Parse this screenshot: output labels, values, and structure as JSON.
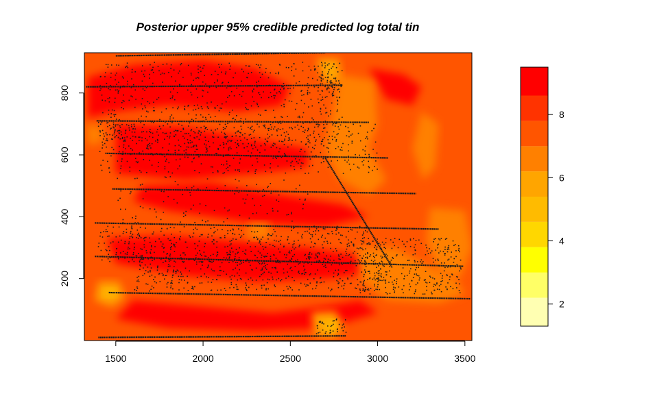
{
  "chart_data": {
    "type": "heatmap",
    "title": "Posterior upper 95% credible predicted log total tin",
    "xlabel": "",
    "ylabel": "",
    "xlim": [
      1320,
      3540
    ],
    "ylim": [
      0,
      930
    ],
    "x_ticks": [
      1500,
      2000,
      2500,
      3000,
      3500
    ],
    "y_ticks": [
      200,
      400,
      600,
      800
    ],
    "x_tick_labels": [
      "1500",
      "2000",
      "2500",
      "3000",
      "3500"
    ],
    "y_tick_labels": [
      "200",
      "400",
      "600",
      "800"
    ],
    "grid": false,
    "legend": "colorbar-right",
    "colorbar": {
      "range": [
        1.3,
        9.5
      ],
      "ticks": [
        2,
        4,
        6,
        8
      ],
      "tick_labels": [
        "2",
        "4",
        "6",
        "8"
      ],
      "bins": [
        {
          "lo": 1.3,
          "hi": 2.2,
          "color": "#FFFFB2"
        },
        {
          "lo": 2.2,
          "hi": 3.0,
          "color": "#FFFF66"
        },
        {
          "lo": 3.0,
          "hi": 3.8,
          "color": "#FFFF00"
        },
        {
          "lo": 3.8,
          "hi": 4.6,
          "color": "#FFD700"
        },
        {
          "lo": 4.6,
          "hi": 5.4,
          "color": "#FFBB00"
        },
        {
          "lo": 5.4,
          "hi": 6.2,
          "color": "#FFA500"
        },
        {
          "lo": 6.2,
          "hi": 7.0,
          "color": "#FF8000"
        },
        {
          "lo": 7.0,
          "hi": 7.8,
          "color": "#FF5500"
        },
        {
          "lo": 7.8,
          "hi": 8.6,
          "color": "#FF3300"
        },
        {
          "lo": 8.6,
          "hi": 9.5,
          "color": "#FF0000"
        }
      ]
    },
    "background_level": 7.4,
    "regions": [
      {
        "level": 8.9,
        "points": [
          [
            1340,
            850
          ],
          [
            1600,
            890
          ],
          [
            2000,
            905
          ],
          [
            2300,
            880
          ],
          [
            2500,
            820
          ],
          [
            2450,
            760
          ],
          [
            2200,
            740
          ],
          [
            1800,
            760
          ],
          [
            1500,
            740
          ],
          [
            1340,
            720
          ]
        ]
      },
      {
        "level": 8.9,
        "points": [
          [
            1500,
            700
          ],
          [
            1900,
            690
          ],
          [
            2300,
            650
          ],
          [
            2600,
            620
          ],
          [
            2600,
            560
          ],
          [
            2300,
            540
          ],
          [
            1900,
            520
          ],
          [
            1500,
            540
          ]
        ]
      },
      {
        "level": 8.9,
        "points": [
          [
            1650,
            500
          ],
          [
            2050,
            510
          ],
          [
            2450,
            470
          ],
          [
            2800,
            440
          ],
          [
            2950,
            400
          ],
          [
            2700,
            370
          ],
          [
            2300,
            380
          ],
          [
            1800,
            420
          ],
          [
            1600,
            450
          ]
        ]
      },
      {
        "level": 8.9,
        "points": [
          [
            1450,
            330
          ],
          [
            1800,
            340
          ],
          [
            2200,
            320
          ],
          [
            2600,
            300
          ],
          [
            2950,
            270
          ],
          [
            3000,
            220
          ],
          [
            2700,
            200
          ],
          [
            2300,
            190
          ],
          [
            1900,
            210
          ],
          [
            1500,
            250
          ]
        ]
      },
      {
        "level": 8.9,
        "points": [
          [
            1600,
            130
          ],
          [
            2000,
            110
          ],
          [
            2400,
            90
          ],
          [
            2700,
            110
          ],
          [
            2900,
            130
          ],
          [
            3000,
            90
          ],
          [
            2700,
            40
          ],
          [
            2300,
            30
          ],
          [
            1800,
            40
          ],
          [
            1500,
            70
          ]
        ]
      },
      {
        "level": 8.9,
        "points": [
          [
            2950,
            880
          ],
          [
            3150,
            860
          ],
          [
            3250,
            820
          ],
          [
            3200,
            760
          ],
          [
            3050,
            780
          ]
        ]
      },
      {
        "level": 6.6,
        "points": [
          [
            2780,
            860
          ],
          [
            2980,
            840
          ],
          [
            3000,
            700
          ],
          [
            2950,
            620
          ],
          [
            3050,
            520
          ],
          [
            2950,
            470
          ],
          [
            2780,
            520
          ],
          [
            2700,
            620
          ],
          [
            2750,
            760
          ]
        ]
      },
      {
        "level": 6.6,
        "points": [
          [
            3250,
            740
          ],
          [
            3350,
            700
          ],
          [
            3330,
            560
          ],
          [
            3260,
            520
          ],
          [
            3200,
            620
          ]
        ]
      },
      {
        "level": 6.6,
        "points": [
          [
            3300,
            430
          ],
          [
            3500,
            420
          ],
          [
            3540,
            300
          ],
          [
            3470,
            200
          ],
          [
            3350,
            220
          ],
          [
            3280,
            320
          ]
        ]
      },
      {
        "level": 6.6,
        "points": [
          [
            2880,
            300
          ],
          [
            3100,
            300
          ],
          [
            3300,
            240
          ],
          [
            3450,
            200
          ],
          [
            3500,
            150
          ],
          [
            3350,
            120
          ],
          [
            3050,
            130
          ],
          [
            2900,
            200
          ]
        ]
      },
      {
        "level": 6.6,
        "points": [
          [
            1330,
            700
          ],
          [
            1420,
            690
          ],
          [
            1420,
            640
          ],
          [
            1340,
            630
          ]
        ]
      },
      {
        "level": 6.6,
        "points": [
          [
            2260,
            380
          ],
          [
            2380,
            380
          ],
          [
            2380,
            330
          ],
          [
            2260,
            330
          ]
        ]
      },
      {
        "level": 5.8,
        "points": [
          [
            1400,
            190
          ],
          [
            1520,
            190
          ],
          [
            1550,
            140
          ],
          [
            1480,
            110
          ],
          [
            1380,
            130
          ]
        ]
      },
      {
        "level": 5.8,
        "points": [
          [
            2620,
            90
          ],
          [
            2760,
            95
          ],
          [
            2800,
            50
          ],
          [
            2760,
            10
          ],
          [
            2640,
            15
          ]
        ]
      },
      {
        "level": 5.8,
        "points": [
          [
            2650,
            910
          ],
          [
            2780,
            910
          ],
          [
            2790,
            840
          ],
          [
            2700,
            830
          ]
        ]
      },
      {
        "level": 5.0,
        "points": [
          [
            1430,
            165
          ],
          [
            1490,
            168
          ],
          [
            1500,
            145
          ],
          [
            1440,
            140
          ]
        ]
      },
      {
        "level": 5.0,
        "points": [
          [
            2700,
            60
          ],
          [
            2760,
            65
          ],
          [
            2770,
            35
          ],
          [
            2710,
            30
          ]
        ]
      }
    ],
    "transects": [
      {
        "points": [
          [
            1330,
            820
          ],
          [
            2800,
            825
          ]
        ]
      },
      {
        "points": [
          [
            1390,
            710
          ],
          [
            2950,
            705
          ]
        ]
      },
      {
        "points": [
          [
            1440,
            605
          ],
          [
            3060,
            590
          ]
        ]
      },
      {
        "points": [
          [
            1480,
            490
          ],
          [
            3220,
            475
          ]
        ]
      },
      {
        "points": [
          [
            1380,
            380
          ],
          [
            3350,
            360
          ]
        ]
      },
      {
        "points": [
          [
            1380,
            272
          ],
          [
            3490,
            240
          ]
        ]
      },
      {
        "points": [
          [
            1460,
            155
          ],
          [
            3530,
            135
          ]
        ]
      },
      {
        "points": [
          [
            1400,
            10
          ],
          [
            2820,
            15
          ]
        ]
      },
      {
        "points": [
          [
            1500,
            920
          ],
          [
            2700,
            930
          ]
        ]
      },
      {
        "points": [
          [
            2700,
            590
          ],
          [
            3080,
            240
          ]
        ]
      }
    ],
    "sample_clusters": [
      {
        "x": [
          1400,
          2800
        ],
        "y": [
          620,
          900
        ],
        "count": 700
      },
      {
        "x": [
          1400,
          3000
        ],
        "y": [
          540,
          700
        ],
        "count": 450
      },
      {
        "x": [
          1500,
          2600
        ],
        "y": [
          380,
          530
        ],
        "count": 120
      },
      {
        "x": [
          1400,
          2950
        ],
        "y": [
          250,
          370
        ],
        "count": 500
      },
      {
        "x": [
          1600,
          3050
        ],
        "y": [
          160,
          280
        ],
        "count": 450
      },
      {
        "x": [
          2900,
          3480
        ],
        "y": [
          150,
          330
        ],
        "count": 320
      },
      {
        "x": [
          2650,
          2800
        ],
        "y": [
          780,
          900
        ],
        "count": 60
      },
      {
        "x": [
          2650,
          2820
        ],
        "y": [
          20,
          70
        ],
        "count": 40
      }
    ]
  }
}
